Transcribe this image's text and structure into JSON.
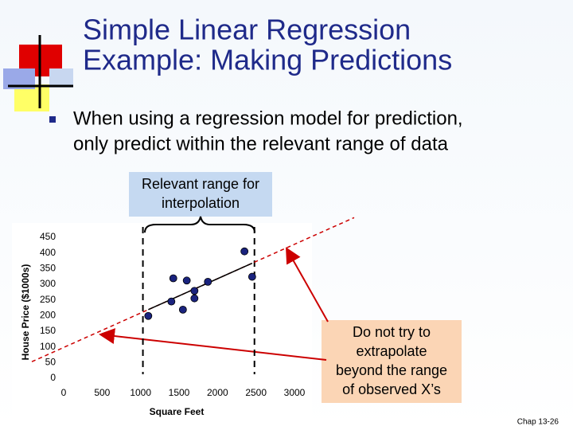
{
  "slide": {
    "title": [
      "Simple Linear Regression",
      "Example:  Making Predictions"
    ],
    "bullet": [
      "When using a regression model for prediction,",
      "only predict within the relevant range of data"
    ],
    "callout_interpolation": [
      "Relevant range for",
      "interpolation"
    ],
    "callout_extrapolation": [
      "Do not try to",
      "extrapolate",
      "beyond the range",
      "of observed X’s"
    ],
    "footer": "Chap 13-26"
  },
  "chart_data": {
    "type": "scatter",
    "x_label": "Square Feet",
    "y_label": "House Price ($1000s)",
    "series": [
      {
        "name": "Houses",
        "color": "#1a237e",
        "x": [
          1400,
          1600,
          1700,
          1875,
          1100,
          1550,
          2350,
          2450,
          1425,
          1700
        ],
        "values": [
          245,
          312,
          279,
          308,
          199,
          219,
          405,
          324,
          319,
          255
        ]
      }
    ],
    "fit": {
      "intercept": 98.25,
      "slope": 0.1098,
      "x": [
        1100,
        2450
      ]
    },
    "relevant_range": [
      1030,
      2480
    ],
    "xlim": [
      0,
      3000
    ],
    "xticks": [
      0,
      500,
      1000,
      1500,
      2000,
      2500,
      3000
    ],
    "ylim": [
      0,
      450
    ],
    "yticks": [
      0,
      50,
      100,
      150,
      200,
      250,
      300,
      350,
      400,
      450
    ]
  }
}
